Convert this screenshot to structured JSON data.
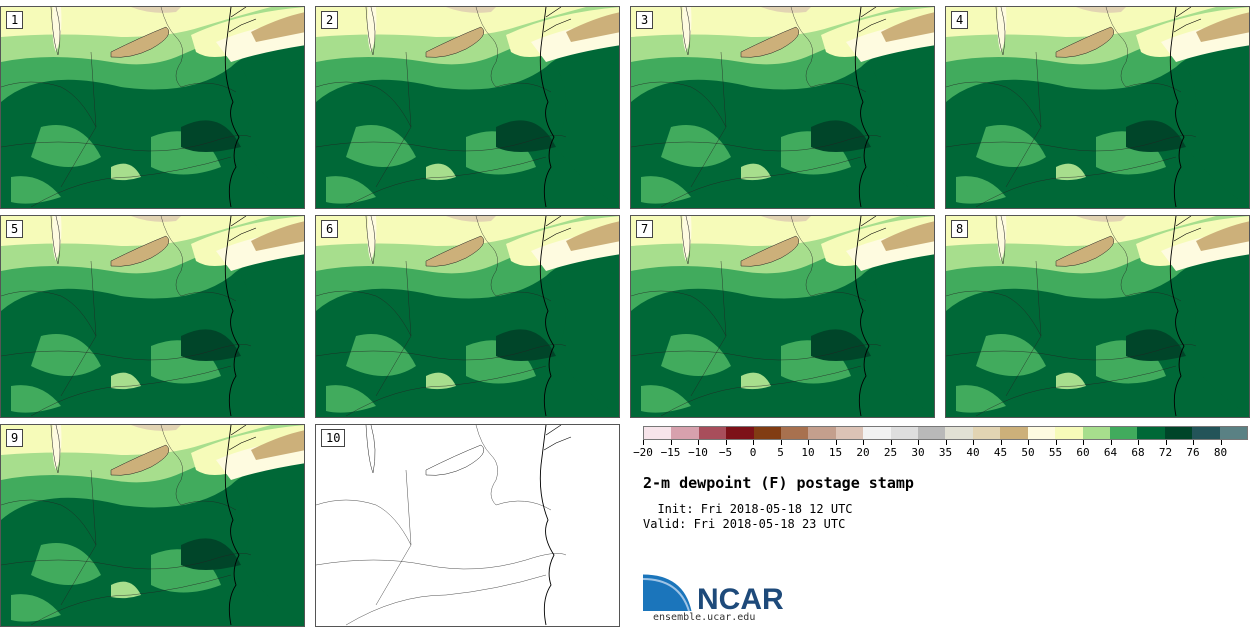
{
  "panels": [
    {
      "label": "1"
    },
    {
      "label": "2"
    },
    {
      "label": "3"
    },
    {
      "label": "4"
    },
    {
      "label": "5"
    },
    {
      "label": "6"
    },
    {
      "label": "7"
    },
    {
      "label": "8"
    },
    {
      "label": "9"
    },
    {
      "label": "10"
    }
  ],
  "colorbar": {
    "colors": [
      "#f7e4ea",
      "#d7a1ad",
      "#a84e5b",
      "#7d1118",
      "#813c13",
      "#a8714f",
      "#c49f8d",
      "#dcc3b6",
      "#f2f2f2",
      "#dedede",
      "#b9b9b9",
      "#e1e0d4",
      "#e2d4b3",
      "#ccb07a",
      "#fefbe0",
      "#f6fbb9",
      "#a7de8d",
      "#41ab5d",
      "#006837",
      "#004529",
      "#235459",
      "#5a8184"
    ],
    "ticks": [
      "−20",
      "−15",
      "−10",
      "−5",
      "0",
      "5",
      "10",
      "15",
      "20",
      "25",
      "30",
      "35",
      "40",
      "45",
      "50",
      "55",
      "60",
      "64",
      "68",
      "72",
      "76",
      "80"
    ]
  },
  "title": "2-m dewpoint (F) postage stamp",
  "init": "  Init: Fri 2018-05-18 12 UTC",
  "valid": "Valid: Fri 2018-05-18 23 UTC",
  "logo_text": "NCAR",
  "site": "ensemble.ucar.edu"
}
